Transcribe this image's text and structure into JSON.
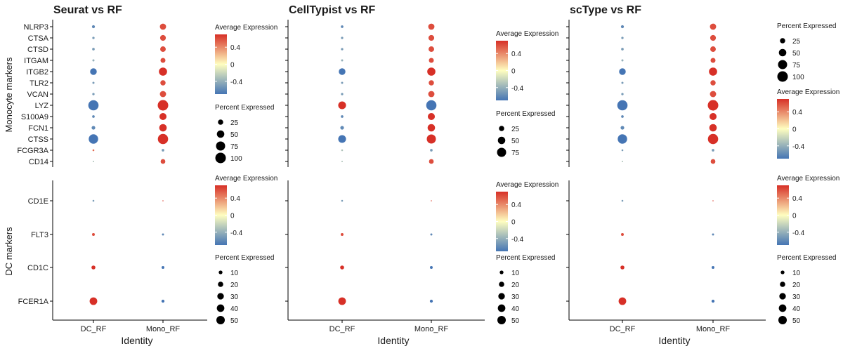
{
  "row_labels": [
    "Monocyte markers",
    "DC markers"
  ],
  "x_axis_title": "Identity",
  "colors": {
    "high": "#d73027",
    "mid": "#fffec0",
    "low": "#4575b4",
    "text": "#1a1a1a",
    "axis": "#000000"
  },
  "chart_data": [
    {
      "type": "dotplot",
      "title": "Seurat vs RF",
      "categories": [
        "DC_RF",
        "Mono_RF"
      ],
      "monocyte": {
        "genes": [
          "NLRP3",
          "CTSA",
          "CTSD",
          "ITGAM",
          "ITGB2",
          "TLR2",
          "VCAN",
          "LYZ",
          "S100A9",
          "FCN1",
          "CTSS",
          "FCGR3A",
          "CD14"
        ],
        "avg_exp": [
          [
            -0.6,
            0.6
          ],
          [
            -0.5,
            0.6
          ],
          [
            -0.5,
            0.6
          ],
          [
            -0.4,
            0.6
          ],
          [
            -0.7,
            0.7
          ],
          [
            -0.5,
            0.6
          ],
          [
            -0.5,
            0.6
          ],
          [
            -0.7,
            0.7
          ],
          [
            -0.6,
            0.7
          ],
          [
            -0.6,
            0.7
          ],
          [
            -0.7,
            0.7
          ],
          [
            0.5,
            -0.5
          ],
          [
            -0.3,
            0.6
          ]
        ],
        "pct_exp": [
          [
            8,
            35
          ],
          [
            5,
            30
          ],
          [
            6,
            28
          ],
          [
            4,
            22
          ],
          [
            40,
            60
          ],
          [
            4,
            25
          ],
          [
            5,
            35
          ],
          [
            95,
            100
          ],
          [
            6,
            45
          ],
          [
            12,
            50
          ],
          [
            80,
            95
          ],
          [
            3,
            6
          ],
          [
            2,
            20
          ]
        ],
        "color_legend": {
          "title": "Average Expression",
          "ticks": [
            0.4,
            0.0,
            -0.4
          ],
          "range": [
            -0.7,
            0.7
          ]
        },
        "size_legend": {
          "title": "Percent Expressed",
          "values": [
            25,
            50,
            75,
            100
          ]
        }
      },
      "dc": {
        "genes": [
          "CD1E",
          "FLT3",
          "CD1C",
          "FCER1A"
        ],
        "avg_exp": [
          [
            -0.5,
            0.6
          ],
          [
            0.6,
            -0.6
          ],
          [
            0.7,
            -0.7
          ],
          [
            0.7,
            -0.7
          ]
        ],
        "pct_exp": [
          [
            3,
            1
          ],
          [
            7,
            4
          ],
          [
            14,
            7
          ],
          [
            52,
            8
          ]
        ],
        "color_legend": {
          "title": "Average Expression",
          "ticks": [
            0.4,
            0.0,
            -0.4
          ],
          "range": [
            -0.7,
            0.7
          ]
        },
        "size_legend": {
          "title": "Percent Expressed",
          "values": [
            10,
            20,
            30,
            40,
            50
          ]
        }
      }
    },
    {
      "type": "dotplot",
      "title": "CellTypist vs RF",
      "categories": [
        "DC_RF",
        "Mono_RF"
      ],
      "monocyte": {
        "genes": [
          "NLRP3",
          "CTSA",
          "CTSD",
          "ITGAM",
          "ITGB2",
          "TLR2",
          "VCAN",
          "LYZ",
          "S100A9",
          "FCN1",
          "CTSS",
          "FCGR3A",
          "CD14"
        ],
        "avg_exp": [
          [
            -0.6,
            0.6
          ],
          [
            -0.5,
            0.6
          ],
          [
            -0.5,
            0.6
          ],
          [
            -0.4,
            0.6
          ],
          [
            -0.7,
            0.7
          ],
          [
            -0.5,
            0.6
          ],
          [
            -0.5,
            0.6
          ],
          [
            0.7,
            -0.7
          ],
          [
            -0.6,
            0.7
          ],
          [
            -0.6,
            0.7
          ],
          [
            -0.7,
            0.7
          ],
          [
            -0.3,
            -0.5
          ],
          [
            -0.3,
            0.6
          ]
        ],
        "pct_exp": [
          [
            6,
            35
          ],
          [
            5,
            30
          ],
          [
            5,
            28
          ],
          [
            4,
            22
          ],
          [
            40,
            60
          ],
          [
            4,
            25
          ],
          [
            5,
            35
          ],
          [
            55,
            95
          ],
          [
            6,
            45
          ],
          [
            12,
            50
          ],
          [
            55,
            75
          ],
          [
            3,
            6
          ],
          [
            2,
            20
          ]
        ],
        "color_legend": {
          "title": "Average Expression",
          "ticks": [
            0.4,
            0.0,
            -0.4
          ],
          "range": [
            -0.7,
            0.7
          ]
        },
        "size_legend": {
          "title": "Percent Expressed",
          "values": [
            25,
            50,
            75
          ]
        }
      },
      "dc": {
        "genes": [
          "CD1E",
          "FLT3",
          "CD1C",
          "FCER1A"
        ],
        "avg_exp": [
          [
            -0.5,
            0.6
          ],
          [
            0.6,
            -0.6
          ],
          [
            0.7,
            -0.7
          ],
          [
            0.7,
            -0.7
          ]
        ],
        "pct_exp": [
          [
            3,
            1
          ],
          [
            7,
            4
          ],
          [
            14,
            7
          ],
          [
            52,
            8
          ]
        ],
        "color_legend": {
          "title": "Average Expression",
          "ticks": [
            0.4,
            0.0,
            -0.4
          ],
          "range": [
            -0.7,
            0.7
          ]
        },
        "size_legend": {
          "title": "Percent Expressed",
          "values": [
            10,
            20,
            30,
            40,
            50
          ]
        }
      }
    },
    {
      "type": "dotplot",
      "title": "scType vs RF",
      "categories": [
        "DC_RF",
        "Mono_RF"
      ],
      "monocyte": {
        "genes": [
          "NLRP3",
          "CTSA",
          "CTSD",
          "ITGAM",
          "ITGB2",
          "TLR2",
          "VCAN",
          "LYZ",
          "S100A9",
          "FCN1",
          "CTSS",
          "FCGR3A",
          "CD14"
        ],
        "avg_exp": [
          [
            -0.6,
            0.6
          ],
          [
            -0.5,
            0.6
          ],
          [
            -0.5,
            0.6
          ],
          [
            -0.4,
            0.6
          ],
          [
            -0.7,
            0.7
          ],
          [
            -0.5,
            0.6
          ],
          [
            -0.5,
            0.6
          ],
          [
            -0.7,
            0.7
          ],
          [
            -0.6,
            0.7
          ],
          [
            -0.6,
            0.7
          ],
          [
            -0.7,
            0.7
          ],
          [
            -0.5,
            -0.5
          ],
          [
            -0.3,
            0.6
          ]
        ],
        "pct_exp": [
          [
            8,
            35
          ],
          [
            5,
            30
          ],
          [
            6,
            28
          ],
          [
            4,
            22
          ],
          [
            40,
            60
          ],
          [
            4,
            25
          ],
          [
            5,
            35
          ],
          [
            95,
            100
          ],
          [
            6,
            45
          ],
          [
            12,
            50
          ],
          [
            80,
            95
          ],
          [
            3,
            6
          ],
          [
            2,
            20
          ]
        ],
        "color_legend": {
          "title": "Average Expression",
          "ticks": [
            0.4,
            0.0,
            -0.4
          ],
          "range": [
            -0.7,
            0.7
          ]
        },
        "size_legend": {
          "title": "Percent Expressed",
          "values": [
            25,
            50,
            75,
            100
          ]
        }
      },
      "dc": {
        "genes": [
          "CD1E",
          "FLT3",
          "CD1C",
          "FCER1A"
        ],
        "avg_exp": [
          [
            -0.5,
            0.6
          ],
          [
            0.6,
            -0.6
          ],
          [
            0.7,
            -0.7
          ],
          [
            0.7,
            -0.7
          ]
        ],
        "pct_exp": [
          [
            3,
            1
          ],
          [
            7,
            4
          ],
          [
            14,
            7
          ],
          [
            52,
            8
          ]
        ],
        "color_legend": {
          "title": "Average Expression",
          "ticks": [
            0.4,
            0.0,
            -0.4
          ],
          "range": [
            -0.7,
            0.7
          ]
        },
        "size_legend": {
          "title": "Percent Expressed",
          "values": [
            10,
            20,
            30,
            40,
            50
          ]
        }
      }
    }
  ]
}
